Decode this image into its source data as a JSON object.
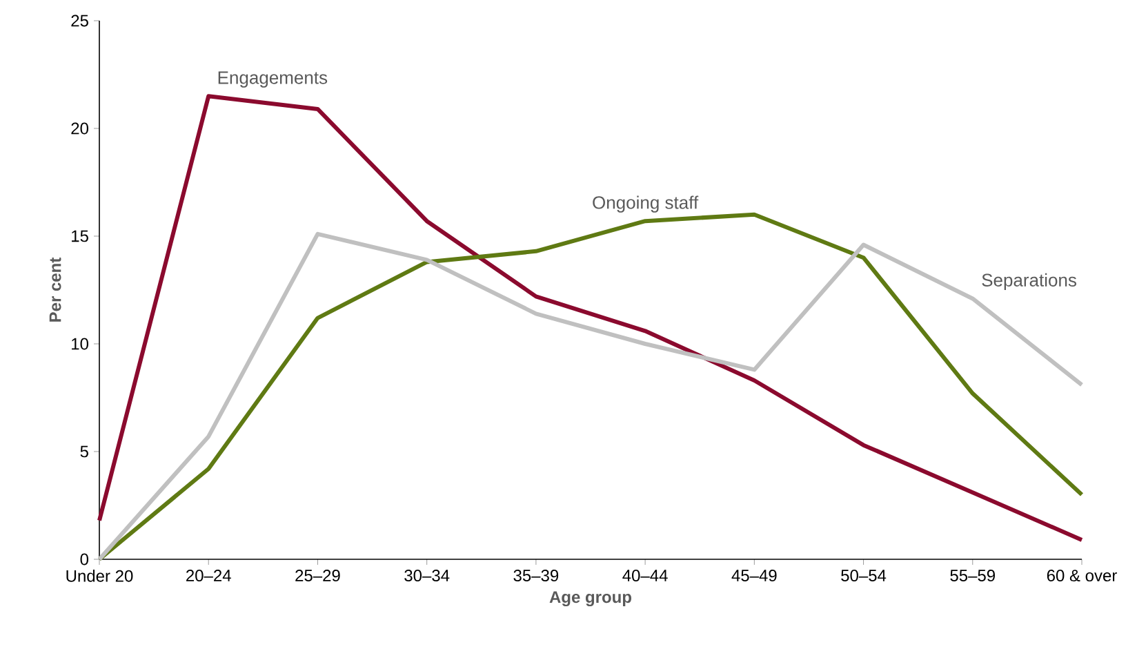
{
  "chart_data": {
    "type": "line",
    "xlabel": "Age group",
    "ylabel": "Per cent",
    "categories": [
      "Under 20",
      "20–24",
      "25–29",
      "30–34",
      "35–39",
      "40–44",
      "45–49",
      "50–54",
      "55–59",
      "60 & over"
    ],
    "series": [
      {
        "name": "Engagements",
        "color": "#8b0a2e",
        "values": [
          1.8,
          21.5,
          20.9,
          15.7,
          12.2,
          10.6,
          8.3,
          5.3,
          3.1,
          0.9
        ]
      },
      {
        "name": "Ongoing staff",
        "color": "#5f7a13",
        "values": [
          0,
          4.2,
          11.2,
          13.8,
          14.3,
          15.7,
          16.0,
          14.0,
          7.7,
          3.0
        ]
      },
      {
        "name": "Separations",
        "color": "#c0c0c0",
        "values": [
          0,
          5.7,
          15.1,
          13.9,
          11.4,
          10.0,
          8.8,
          14.6,
          12.1,
          8.1
        ]
      }
    ],
    "ylim": [
      0,
      25
    ],
    "yticks": [
      0,
      5,
      10,
      15,
      20,
      25
    ],
    "grid": false,
    "legend": false
  }
}
